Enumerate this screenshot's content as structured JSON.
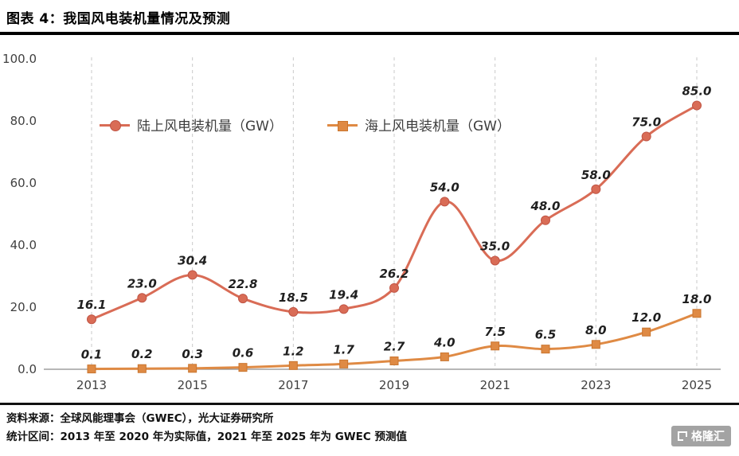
{
  "header": {
    "title": "图表 4：我国风电装机量情况及预测"
  },
  "chart_data": {
    "type": "line",
    "x": [
      2013,
      2014,
      2015,
      2016,
      2017,
      2018,
      2019,
      2020,
      2021,
      2022,
      2023,
      2024,
      2025
    ],
    "x_tick_labels": [
      "2013",
      "2015",
      "2017",
      "2019",
      "2021",
      "2023",
      "2025"
    ],
    "ylim": [
      0,
      100
    ],
    "y_ticks": [
      0,
      20,
      40,
      60,
      80,
      100
    ],
    "grid": "vertical-dashed",
    "legend_position": "inside-top-left",
    "series": [
      {
        "key": "onshore",
        "name": "陆上风电装机量（GW）",
        "marker": "circle",
        "color": "#d96c56",
        "edge": "#c05545",
        "values": [
          16.1,
          23.0,
          30.4,
          22.8,
          18.5,
          19.4,
          26.2,
          54.0,
          35.0,
          48.0,
          58.0,
          75.0,
          85.0
        ]
      },
      {
        "key": "offshore",
        "name": "海上风电装机量（GW）",
        "marker": "square",
        "color": "#df8a44",
        "edge": "#c9752f",
        "values": [
          0.1,
          0.2,
          0.3,
          0.6,
          1.2,
          1.7,
          2.7,
          4.0,
          7.5,
          6.5,
          8.0,
          12.0,
          18.0
        ]
      }
    ]
  },
  "footer": {
    "source_line": "资料来源：全球风能理事会（GWEC），光大证券研究所",
    "range_line": "统计区间：2013 年至 2020 年为实际值，2021 年至 2025 年为  GWEC 预测值",
    "logo_text": "格隆汇"
  }
}
